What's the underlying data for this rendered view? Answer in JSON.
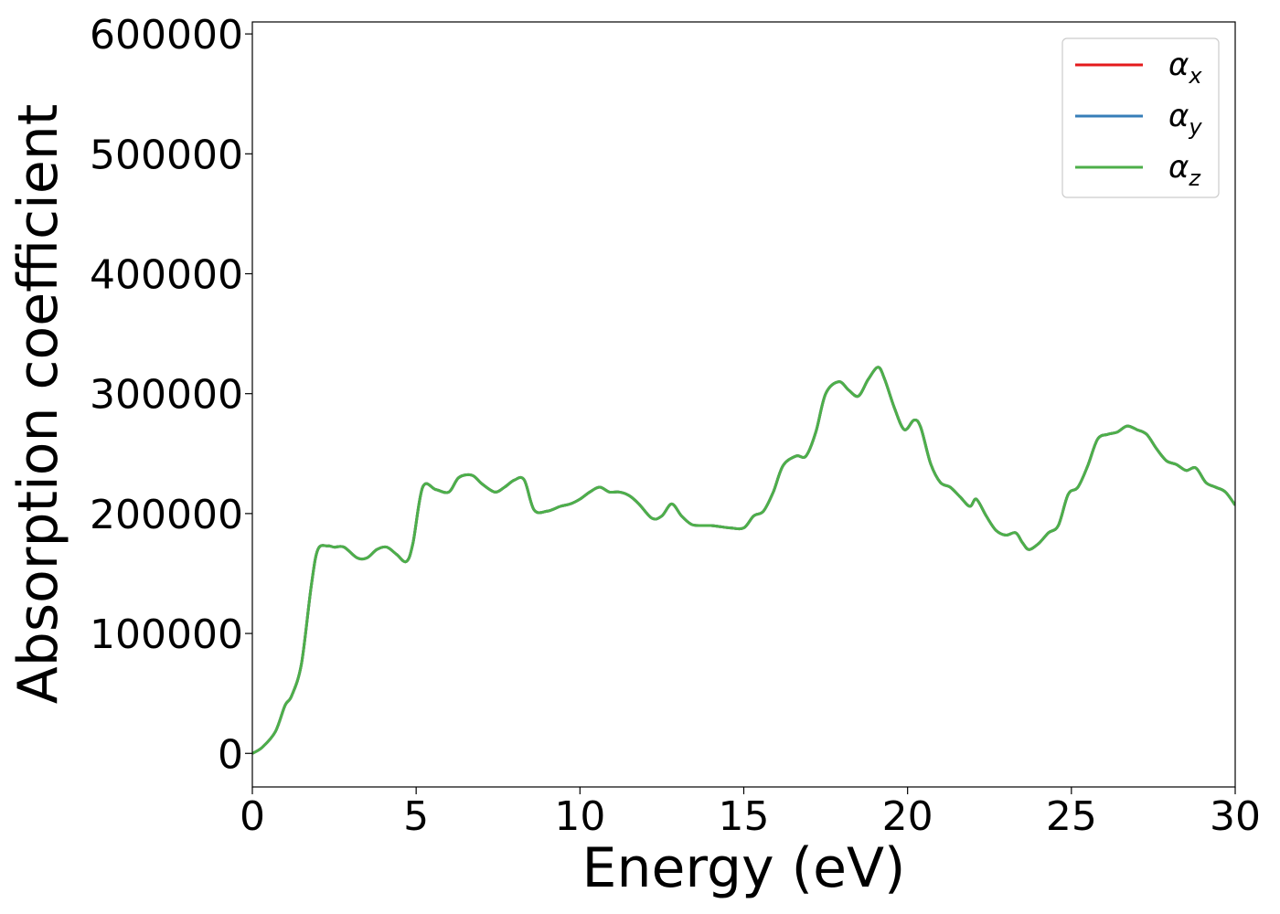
{
  "chart_data": {
    "type": "line",
    "xlabel": "Energy (eV)",
    "ylabel": "Absorption coefficient",
    "xlim": [
      0,
      30
    ],
    "ylim": [
      -28000,
      610000
    ],
    "xticks": [
      0,
      5,
      10,
      15,
      20,
      25,
      30
    ],
    "xtick_labels": [
      "0",
      "5",
      "10",
      "15",
      "20",
      "25",
      "30"
    ],
    "yticks": [
      0,
      100000,
      200000,
      300000,
      400000,
      500000,
      600000
    ],
    "ytick_labels": [
      "0",
      "100000",
      "200000",
      "300000",
      "400000",
      "500000",
      "600000"
    ],
    "grid": false,
    "legend_position": "top-right",
    "series": [
      {
        "name": "α",
        "sub": "x",
        "color": "#e41a1c",
        "x": [
          0,
          0.3,
          0.7,
          1.0,
          1.2,
          1.5,
          1.8,
          2.0,
          2.3,
          2.5,
          2.8,
          3.2,
          3.5,
          3.8,
          4.1,
          4.4,
          4.7,
          4.9,
          5.2,
          5.6,
          6.0,
          6.3,
          6.7,
          7.0,
          7.4,
          7.7,
          8.0,
          8.3,
          8.6,
          9.0,
          9.4,
          9.7,
          10.0,
          10.3,
          10.6,
          10.9,
          11.2,
          11.5,
          11.8,
          12.2,
          12.5,
          12.8,
          13.1,
          13.4,
          13.7,
          14.0,
          14.3,
          14.6,
          15.0,
          15.3,
          15.6,
          15.9,
          16.2,
          16.6,
          16.9,
          17.2,
          17.5,
          17.9,
          18.2,
          18.5,
          18.8,
          19.1,
          19.3,
          19.6,
          19.9,
          20.2,
          20.4,
          20.7,
          21.0,
          21.3,
          21.6,
          21.9,
          22.1,
          22.4,
          22.7,
          23.0,
          23.3,
          23.5,
          23.7,
          24.0,
          24.3,
          24.6,
          24.9,
          25.2,
          25.5,
          25.8,
          26.1,
          26.4,
          26.7,
          27.0,
          27.3,
          27.6,
          27.9,
          28.2,
          28.5,
          28.8,
          29.1,
          29.4,
          29.7,
          30.0
        ],
        "y": [
          0,
          5000,
          18000,
          40000,
          48000,
          75000,
          140000,
          170000,
          173000,
          172000,
          172000,
          163000,
          163000,
          170000,
          172000,
          166000,
          160000,
          175000,
          222000,
          220000,
          218000,
          230000,
          232000,
          225000,
          218000,
          222000,
          228000,
          228000,
          203000,
          202000,
          206000,
          208000,
          212000,
          218000,
          222000,
          218000,
          218000,
          215000,
          208000,
          196000,
          198000,
          208000,
          198000,
          191000,
          190000,
          190000,
          189000,
          188000,
          188000,
          198000,
          202000,
          218000,
          240000,
          248000,
          248000,
          268000,
          300000,
          310000,
          303000,
          298000,
          312000,
          322000,
          312000,
          288000,
          270000,
          278000,
          272000,
          242000,
          226000,
          222000,
          214000,
          206000,
          212000,
          198000,
          186000,
          182000,
          184000,
          176000,
          170000,
          175000,
          184000,
          190000,
          216000,
          222000,
          240000,
          262000,
          266000,
          268000,
          273000,
          270000,
          266000,
          254000,
          244000,
          241000,
          236000,
          238000,
          226000,
          222000,
          218000,
          207000
        ]
      },
      {
        "name": "α",
        "sub": "y",
        "color": "#377eb8",
        "x": [
          0,
          0.3,
          0.7,
          1.0,
          1.2,
          1.5,
          1.8,
          2.0,
          2.3,
          2.5,
          2.8,
          3.2,
          3.5,
          3.8,
          4.1,
          4.4,
          4.7,
          4.9,
          5.2,
          5.6,
          6.0,
          6.3,
          6.7,
          7.0,
          7.4,
          7.7,
          8.0,
          8.3,
          8.6,
          9.0,
          9.4,
          9.7,
          10.0,
          10.3,
          10.6,
          10.9,
          11.2,
          11.5,
          11.8,
          12.2,
          12.5,
          12.8,
          13.1,
          13.4,
          13.7,
          14.0,
          14.3,
          14.6,
          15.0,
          15.3,
          15.6,
          15.9,
          16.2,
          16.6,
          16.9,
          17.2,
          17.5,
          17.9,
          18.2,
          18.5,
          18.8,
          19.1,
          19.3,
          19.6,
          19.9,
          20.2,
          20.4,
          20.7,
          21.0,
          21.3,
          21.6,
          21.9,
          22.1,
          22.4,
          22.7,
          23.0,
          23.3,
          23.5,
          23.7,
          24.0,
          24.3,
          24.6,
          24.9,
          25.2,
          25.5,
          25.8,
          26.1,
          26.4,
          26.7,
          27.0,
          27.3,
          27.6,
          27.9,
          28.2,
          28.5,
          28.8,
          29.1,
          29.4,
          29.7,
          30.0
        ],
        "y": [
          0,
          5000,
          18000,
          40000,
          48000,
          75000,
          140000,
          170000,
          173000,
          172000,
          172000,
          163000,
          163000,
          170000,
          172000,
          166000,
          160000,
          175000,
          222000,
          220000,
          218000,
          230000,
          232000,
          225000,
          218000,
          222000,
          228000,
          228000,
          203000,
          202000,
          206000,
          208000,
          212000,
          218000,
          222000,
          218000,
          218000,
          215000,
          208000,
          196000,
          198000,
          208000,
          198000,
          191000,
          190000,
          190000,
          189000,
          188000,
          188000,
          198000,
          202000,
          218000,
          240000,
          248000,
          248000,
          268000,
          300000,
          310000,
          303000,
          298000,
          312000,
          322000,
          312000,
          288000,
          270000,
          278000,
          272000,
          242000,
          226000,
          222000,
          214000,
          206000,
          212000,
          198000,
          186000,
          182000,
          184000,
          176000,
          170000,
          175000,
          184000,
          190000,
          216000,
          222000,
          240000,
          262000,
          266000,
          268000,
          273000,
          270000,
          266000,
          254000,
          244000,
          241000,
          236000,
          238000,
          226000,
          222000,
          218000,
          207000
        ]
      },
      {
        "name": "α",
        "sub": "z",
        "color": "#4daf4a",
        "x": [
          0,
          0.3,
          0.7,
          1.0,
          1.2,
          1.5,
          1.8,
          2.0,
          2.3,
          2.5,
          2.8,
          3.2,
          3.5,
          3.8,
          4.1,
          4.4,
          4.7,
          4.9,
          5.2,
          5.6,
          6.0,
          6.3,
          6.7,
          7.0,
          7.4,
          7.7,
          8.0,
          8.3,
          8.6,
          9.0,
          9.4,
          9.7,
          10.0,
          10.3,
          10.6,
          10.9,
          11.2,
          11.5,
          11.8,
          12.2,
          12.5,
          12.8,
          13.1,
          13.4,
          13.7,
          14.0,
          14.3,
          14.6,
          15.0,
          15.3,
          15.6,
          15.9,
          16.2,
          16.6,
          16.9,
          17.2,
          17.5,
          17.9,
          18.2,
          18.5,
          18.8,
          19.1,
          19.3,
          19.6,
          19.9,
          20.2,
          20.4,
          20.7,
          21.0,
          21.3,
          21.6,
          21.9,
          22.1,
          22.4,
          22.7,
          23.0,
          23.3,
          23.5,
          23.7,
          24.0,
          24.3,
          24.6,
          24.9,
          25.2,
          25.5,
          25.8,
          26.1,
          26.4,
          26.7,
          27.0,
          27.3,
          27.6,
          27.9,
          28.2,
          28.5,
          28.8,
          29.1,
          29.4,
          29.7,
          30.0
        ],
        "y": [
          0,
          5000,
          18000,
          40000,
          48000,
          75000,
          140000,
          170000,
          173000,
          172000,
          172000,
          163000,
          163000,
          170000,
          172000,
          166000,
          160000,
          175000,
          222000,
          220000,
          218000,
          230000,
          232000,
          225000,
          218000,
          222000,
          228000,
          228000,
          203000,
          202000,
          206000,
          208000,
          212000,
          218000,
          222000,
          218000,
          218000,
          215000,
          208000,
          196000,
          198000,
          208000,
          198000,
          191000,
          190000,
          190000,
          189000,
          188000,
          188000,
          198000,
          202000,
          218000,
          240000,
          248000,
          248000,
          268000,
          300000,
          310000,
          303000,
          298000,
          312000,
          322000,
          312000,
          288000,
          270000,
          278000,
          272000,
          242000,
          226000,
          222000,
          214000,
          206000,
          212000,
          198000,
          186000,
          182000,
          184000,
          176000,
          170000,
          175000,
          184000,
          190000,
          216000,
          222000,
          240000,
          262000,
          266000,
          268000,
          273000,
          270000,
          266000,
          254000,
          244000,
          241000,
          236000,
          238000,
          226000,
          222000,
          218000,
          207000
        ]
      }
    ]
  }
}
